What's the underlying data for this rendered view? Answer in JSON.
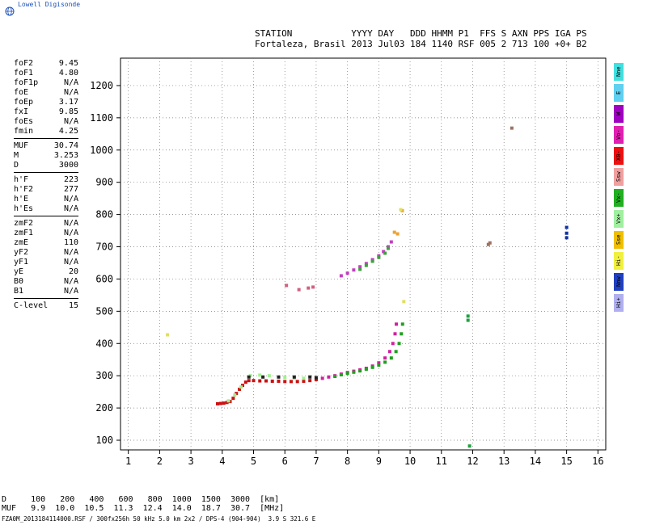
{
  "app": {
    "logo_text": "Lowell Digisonde"
  },
  "header": {
    "line1": "STATION           YYYY DAY   DDD HHMM P1  FFS S AXN PPS IGA PS",
    "line2": "Fortaleza, Brasil 2013 Jul03 184 1140 RSF 005 2 713 100 +0+ B2"
  },
  "params": {
    "group1": [
      {
        "name": "foF2",
        "value": "9.45"
      },
      {
        "name": "foF1",
        "value": "4.80"
      },
      {
        "name": "foF1p",
        "value": "N/A"
      },
      {
        "name": "foE",
        "value": "N/A"
      },
      {
        "name": "foEp",
        "value": "3.17"
      },
      {
        "name": "fxI",
        "value": "9.85"
      },
      {
        "name": "foEs",
        "value": "N/A"
      },
      {
        "name": "fmin",
        "value": "4.25"
      }
    ],
    "group2": [
      {
        "name": "MUF",
        "value": "30.74"
      },
      {
        "name": "M",
        "value": "3.253"
      },
      {
        "name": "D",
        "value": "3000"
      }
    ],
    "group3": [
      {
        "name": "h'F",
        "value": "223"
      },
      {
        "name": "h'F2",
        "value": "277"
      },
      {
        "name": "h'E",
        "value": "N/A"
      },
      {
        "name": "h'Es",
        "value": "N/A"
      }
    ],
    "group4": [
      {
        "name": "zmF2",
        "value": "N/A"
      },
      {
        "name": "zmF1",
        "value": "N/A"
      },
      {
        "name": "zmE",
        "value": "110"
      },
      {
        "name": "yF2",
        "value": "N/A"
      },
      {
        "name": "yF1",
        "value": "N/A"
      },
      {
        "name": "yE",
        "value": "20"
      },
      {
        "name": "B0",
        "value": "N/A"
      },
      {
        "name": "B1",
        "value": "N/A"
      }
    ],
    "group5": [
      {
        "name": "C-level",
        "value": "15"
      }
    ]
  },
  "legend": [
    {
      "label": "Nne",
      "color": "#40e0e0"
    },
    {
      "label": "E",
      "color": "#5fd0f0"
    },
    {
      "label": "W",
      "color": "#a000c0"
    },
    {
      "label": "Vo-",
      "color": "#e020b0"
    },
    {
      "label": "X0-",
      "color": "#ee1010"
    },
    {
      "label": "Ssw",
      "color": "#f0a0a0"
    },
    {
      "label": "Vx-",
      "color": "#20b020"
    },
    {
      "label": "Vx+",
      "color": "#a0f0a0"
    },
    {
      "label": "Sse",
      "color": "#f0c000"
    },
    {
      "label": "Hi-",
      "color": "#f0f040"
    },
    {
      "label": "Nnw",
      "color": "#2040c0"
    },
    {
      "label": "Hi+",
      "color": "#b0b0f0"
    }
  ],
  "bottom_table": {
    "line1": "D     100   200   400   600   800  1000  1500  3000  [km]",
    "line2": "MUF   9.9  10.0  10.5  11.3  12.4  14.0  18.7  30.7  [MHz]"
  },
  "footer": "FZA0M_2013184114000.RSF / 300fx256h 50 kHz 5.0 km 2x2 / DPS-4 (904-904)  3.9 S 321.6 E",
  "chart_data": {
    "type": "scatter",
    "xlim": [
      0.75,
      16.25
    ],
    "ylim": [
      70,
      1285
    ],
    "x_ticks": [
      1,
      2,
      3,
      4,
      5,
      6,
      7,
      8,
      9,
      10,
      11,
      12,
      13,
      14,
      15,
      16
    ],
    "y_ticks": [
      100,
      200,
      300,
      400,
      500,
      600,
      700,
      800,
      900,
      1000,
      1100,
      1200
    ],
    "grid": true,
    "series": [
      {
        "color": "#cc1010",
        "points": [
          [
            3.85,
            213
          ],
          [
            3.95,
            214
          ],
          [
            4.05,
            215
          ],
          [
            4.15,
            217
          ],
          [
            4.25,
            220
          ],
          [
            4.35,
            230
          ],
          [
            4.45,
            245
          ],
          [
            4.55,
            258
          ],
          [
            4.65,
            270
          ],
          [
            4.75,
            280
          ],
          [
            4.85,
            285
          ],
          [
            5.0,
            285
          ],
          [
            5.2,
            284
          ],
          [
            5.4,
            284
          ],
          [
            5.6,
            283
          ],
          [
            5.8,
            283
          ],
          [
            6.0,
            282
          ],
          [
            6.2,
            282
          ],
          [
            6.4,
            282
          ],
          [
            6.6,
            283
          ],
          [
            6.8,
            285
          ],
          [
            7.0,
            288
          ]
        ]
      },
      {
        "color": "#d020a0",
        "points": [
          [
            7.2,
            292
          ],
          [
            7.4,
            296
          ],
          [
            7.6,
            300
          ],
          [
            7.8,
            305
          ],
          [
            8.0,
            310
          ],
          [
            8.2,
            314
          ],
          [
            8.4,
            318
          ],
          [
            8.6,
            323
          ],
          [
            8.8,
            330
          ],
          [
            9.0,
            340
          ],
          [
            9.2,
            355
          ],
          [
            9.35,
            375
          ],
          [
            9.45,
            400
          ],
          [
            9.52,
            430
          ],
          [
            9.56,
            460
          ]
        ]
      },
      {
        "color": "#20a020",
        "points": [
          [
            7.6,
            298
          ],
          [
            7.8,
            303
          ],
          [
            8.0,
            307
          ],
          [
            8.2,
            311
          ],
          [
            8.4,
            315
          ],
          [
            8.6,
            320
          ],
          [
            8.8,
            326
          ],
          [
            9.0,
            333
          ],
          [
            9.2,
            342
          ],
          [
            9.4,
            355
          ],
          [
            9.55,
            375
          ],
          [
            9.65,
            400
          ],
          [
            9.72,
            430
          ],
          [
            9.76,
            460
          ]
        ]
      },
      {
        "color": "#a0f090",
        "points": [
          [
            4.2,
            222
          ],
          [
            4.4,
            240
          ],
          [
            4.6,
            265
          ],
          [
            4.9,
            300
          ],
          [
            5.2,
            302
          ],
          [
            5.5,
            300
          ],
          [
            6.0,
            295
          ],
          [
            6.3,
            292
          ],
          [
            6.6,
            292
          ]
        ]
      },
      {
        "color": "#222222",
        "points": [
          [
            4.85,
            296
          ],
          [
            5.3,
            296
          ],
          [
            5.8,
            296
          ],
          [
            6.3,
            296
          ],
          [
            6.8,
            296
          ],
          [
            7.0,
            294
          ]
        ]
      },
      {
        "color": "#c040c0",
        "points": [
          [
            7.8,
            610
          ],
          [
            8.0,
            618
          ],
          [
            8.2,
            628
          ],
          [
            8.4,
            638
          ],
          [
            8.6,
            648
          ],
          [
            8.8,
            660
          ],
          [
            9.0,
            672
          ],
          [
            9.15,
            685
          ],
          [
            9.3,
            700
          ],
          [
            9.4,
            715
          ]
        ]
      },
      {
        "color": "#40a040",
        "points": [
          [
            8.4,
            630
          ],
          [
            8.6,
            642
          ],
          [
            8.8,
            655
          ],
          [
            9.0,
            667
          ],
          [
            9.2,
            680
          ],
          [
            9.3,
            695
          ]
        ]
      },
      {
        "color": "#f0a030",
        "points": [
          [
            9.5,
            745
          ],
          [
            9.6,
            740
          ],
          [
            9.75,
            812
          ]
        ]
      },
      {
        "color": "#e0e060",
        "points": [
          [
            2.25,
            427
          ],
          [
            9.8,
            530
          ],
          [
            9.7,
            815
          ]
        ]
      },
      {
        "color": "#d06080",
        "points": [
          [
            6.45,
            567
          ],
          [
            6.75,
            572
          ],
          [
            6.9,
            575
          ],
          [
            6.05,
            580
          ]
        ]
      },
      {
        "color": "#20a040",
        "points": [
          [
            11.85,
            485
          ],
          [
            11.85,
            472
          ],
          [
            11.9,
            82
          ]
        ]
      },
      {
        "color": "#a07060",
        "points": [
          [
            12.5,
            707
          ],
          [
            12.55,
            712
          ],
          [
            13.25,
            1068
          ]
        ]
      },
      {
        "color": "#1030a0",
        "points": [
          [
            15.0,
            760
          ],
          [
            15.0,
            742
          ],
          [
            15.0,
            728
          ]
        ]
      }
    ]
  }
}
